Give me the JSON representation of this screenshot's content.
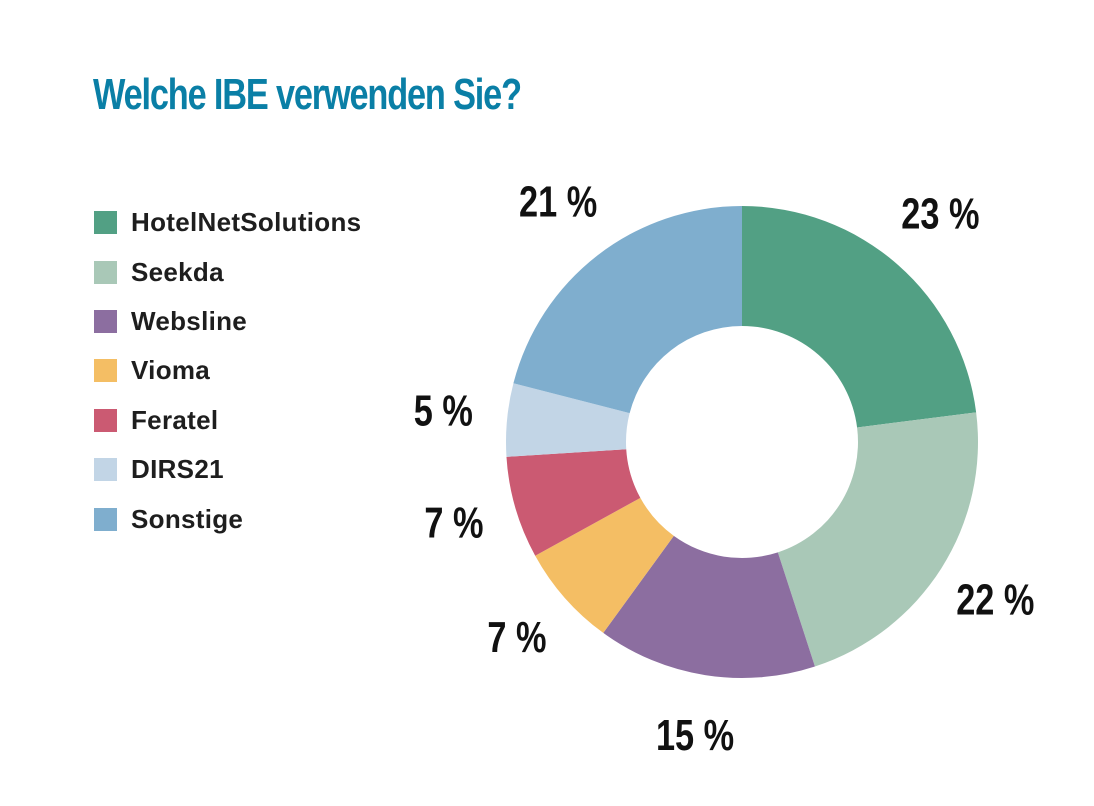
{
  "chart_data": {
    "type": "pie",
    "title": "Welche IBE verwenden Sie?",
    "categories": [
      "HotelNetSolutions",
      "Seekda",
      "Websline",
      "Vioma",
      "Feratel",
      "DIRS21",
      "Sonstige"
    ],
    "values": [
      23,
      22,
      15,
      7,
      7,
      5,
      21
    ],
    "labels": [
      "23 %",
      "22 %",
      "15 %",
      "7 %",
      "7 %",
      "5 %",
      "21 %"
    ],
    "colors": [
      "#52a084",
      "#a9c8b7",
      "#8c6ea0",
      "#f4be64",
      "#cb5a72",
      "#c2d5e6",
      "#7faece"
    ],
    "donut": true,
    "legend": "left"
  }
}
